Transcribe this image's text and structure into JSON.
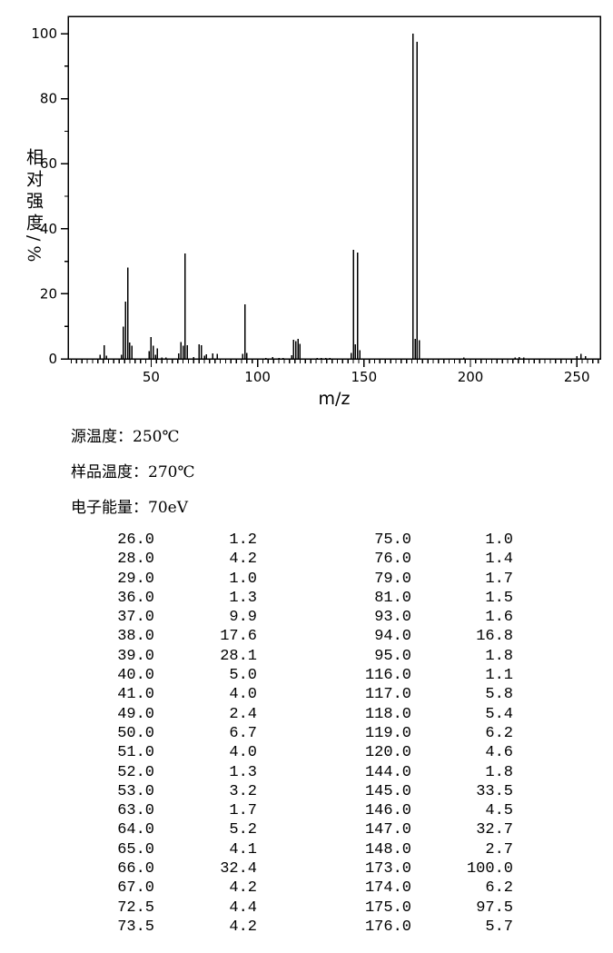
{
  "conditions": [
    {
      "label": "源温度：",
      "value": "250℃"
    },
    {
      "label": "样品温度：",
      "value": "270℃"
    },
    {
      "label": "电子能量：",
      "value": "70eV"
    }
  ],
  "peak_table": {
    "rows_left": [
      [
        "26.0",
        "1.2"
      ],
      [
        "28.0",
        "4.2"
      ],
      [
        "29.0",
        "1.0"
      ],
      [
        "36.0",
        "1.3"
      ],
      [
        "37.0",
        "9.9"
      ],
      [
        "38.0",
        "17.6"
      ],
      [
        "39.0",
        "28.1"
      ],
      [
        "40.0",
        "5.0"
      ],
      [
        "41.0",
        "4.0"
      ],
      [
        "49.0",
        "2.4"
      ],
      [
        "50.0",
        "6.7"
      ],
      [
        "51.0",
        "4.0"
      ],
      [
        "52.0",
        "1.3"
      ],
      [
        "53.0",
        "3.2"
      ],
      [
        "63.0",
        "1.7"
      ],
      [
        "64.0",
        "5.2"
      ],
      [
        "65.0",
        "4.1"
      ],
      [
        "66.0",
        "32.4"
      ],
      [
        "67.0",
        "4.2"
      ],
      [
        "72.5",
        "4.4"
      ],
      [
        "73.5",
        "4.2"
      ]
    ],
    "rows_right": [
      [
        "75.0",
        "1.0"
      ],
      [
        "76.0",
        "1.4"
      ],
      [
        "79.0",
        "1.7"
      ],
      [
        "81.0",
        "1.5"
      ],
      [
        "93.0",
        "1.6"
      ],
      [
        "94.0",
        "16.8"
      ],
      [
        "95.0",
        "1.8"
      ],
      [
        "116.0",
        "1.1"
      ],
      [
        "117.0",
        "5.8"
      ],
      [
        "118.0",
        "5.4"
      ],
      [
        "119.0",
        "6.2"
      ],
      [
        "120.0",
        "4.6"
      ],
      [
        "144.0",
        "1.8"
      ],
      [
        "145.0",
        "33.5"
      ],
      [
        "146.0",
        "4.5"
      ],
      [
        "147.0",
        "32.7"
      ],
      [
        "148.0",
        "2.7"
      ],
      [
        "173.0",
        "100.0"
      ],
      [
        "174.0",
        "6.2"
      ],
      [
        "175.0",
        "97.5"
      ],
      [
        "176.0",
        "5.7"
      ]
    ]
  },
  "chart_data": {
    "type": "bar",
    "subtype": "mass-spectrum",
    "title": "",
    "xlabel": "m/z",
    "ylabel": "相对强度/%",
    "xlim": [
      11,
      261
    ],
    "ylim": [
      0,
      105
    ],
    "x_major_ticks": [
      50,
      100,
      150,
      200,
      250
    ],
    "x_minor_step": 2.5,
    "y_major_ticks": [
      0,
      20,
      40,
      60,
      80,
      100
    ],
    "y_minor_step": 10,
    "grid": false,
    "legend": null,
    "peaks": [
      [
        26.0,
        1.2
      ],
      [
        28.0,
        4.2
      ],
      [
        29.0,
        1.0
      ],
      [
        36.0,
        1.3
      ],
      [
        37.0,
        9.9
      ],
      [
        38.0,
        17.6
      ],
      [
        39.0,
        28.1
      ],
      [
        40.0,
        5.0
      ],
      [
        41.0,
        4.0
      ],
      [
        49.0,
        2.4
      ],
      [
        50.0,
        6.7
      ],
      [
        51.0,
        4.0
      ],
      [
        52.0,
        1.3
      ],
      [
        53.0,
        3.2
      ],
      [
        63.0,
        1.7
      ],
      [
        64.0,
        5.2
      ],
      [
        65.0,
        4.1
      ],
      [
        66.0,
        32.4
      ],
      [
        67.0,
        4.2
      ],
      [
        72.5,
        4.4
      ],
      [
        73.5,
        4.2
      ],
      [
        75.0,
        1.0
      ],
      [
        76.0,
        1.4
      ],
      [
        79.0,
        1.7
      ],
      [
        81.0,
        1.5
      ],
      [
        93.0,
        1.6
      ],
      [
        94.0,
        16.8
      ],
      [
        95.0,
        1.8
      ],
      [
        116.0,
        1.1
      ],
      [
        117.0,
        5.8
      ],
      [
        118.0,
        5.4
      ],
      [
        119.0,
        6.2
      ],
      [
        120.0,
        4.6
      ],
      [
        144.0,
        1.8
      ],
      [
        145.0,
        33.5
      ],
      [
        146.0,
        4.5
      ],
      [
        147.0,
        32.7
      ],
      [
        148.0,
        2.7
      ],
      [
        173.0,
        100.0
      ],
      [
        174.0,
        6.2
      ],
      [
        175.0,
        97.5
      ],
      [
        176.0,
        5.7
      ]
    ],
    "trace_peaks": [
      [
        55,
        0.4
      ],
      [
        57,
        0.4
      ],
      [
        70,
        0.5
      ],
      [
        104,
        0.3
      ],
      [
        107,
        0.5
      ],
      [
        110,
        0.3
      ],
      [
        112,
        0.3
      ],
      [
        128,
        0.3
      ],
      [
        130,
        0.3
      ],
      [
        132,
        0.3
      ],
      [
        134,
        0.3
      ],
      [
        197,
        0.4
      ],
      [
        221,
        0.4
      ],
      [
        223,
        0.5
      ],
      [
        225,
        0.4
      ],
      [
        250,
        0.8
      ],
      [
        252,
        1.5
      ],
      [
        254,
        0.8
      ]
    ],
    "line_color": "#000000",
    "background_color": "#ffffff"
  }
}
